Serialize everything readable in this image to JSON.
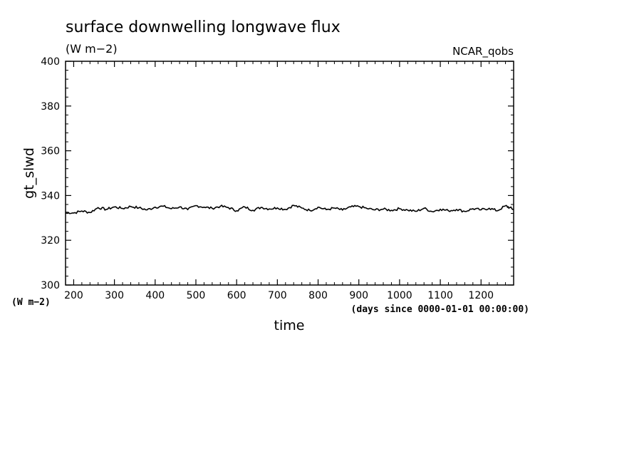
{
  "chart_data": {
    "type": "line",
    "title": "surface downwelling longwave flux",
    "subtitle": "(W m−2)",
    "source_label": "NCAR_qobs",
    "xlabel": "time",
    "x_units": "(days since 0000-01-01 00:00:00)",
    "ylabel": "gt_slwd",
    "y_units": "(W m−2)",
    "xlim": [
      180,
      1280
    ],
    "ylim": [
      300,
      400
    ],
    "x_ticks": [
      200,
      300,
      400,
      500,
      600,
      700,
      800,
      900,
      1000,
      1100,
      1200
    ],
    "y_ticks": [
      300,
      320,
      340,
      360,
      380,
      400
    ],
    "grid": false,
    "line_color": "#000000",
    "series": [
      {
        "x": [
          180,
          200,
          220,
          240,
          260,
          280,
          300,
          320,
          340,
          360,
          380,
          400,
          420,
          440,
          460,
          480,
          500,
          520,
          540,
          560,
          580,
          600,
          620,
          640,
          660,
          680,
          700,
          720,
          740,
          760,
          780,
          800,
          820,
          840,
          860,
          880,
          900,
          920,
          940,
          960,
          980,
          1000,
          1020,
          1040,
          1060,
          1080,
          1100,
          1120,
          1140,
          1160,
          1180,
          1200,
          1220,
          1240,
          1260,
          1270,
          1280
        ],
        "y": [
          332.5,
          332.2,
          333.1,
          332.4,
          334.6,
          333.8,
          334.9,
          334.2,
          335.1,
          334.5,
          333.6,
          334.8,
          335.2,
          334.1,
          334.9,
          333.7,
          335.5,
          334.8,
          334.3,
          335.2,
          334.6,
          333.2,
          334.9,
          333.4,
          334.7,
          334.0,
          334.5,
          333.8,
          335.6,
          334.4,
          333.3,
          334.8,
          333.7,
          334.4,
          333.5,
          334.9,
          335.1,
          334.2,
          333.6,
          333.9,
          333.4,
          334.1,
          333.5,
          332.9,
          334.3,
          332.8,
          333.9,
          333.2,
          333.8,
          332.9,
          334.1,
          333.6,
          334.3,
          333.2,
          335.4,
          334.6,
          333.8
        ]
      }
    ]
  }
}
